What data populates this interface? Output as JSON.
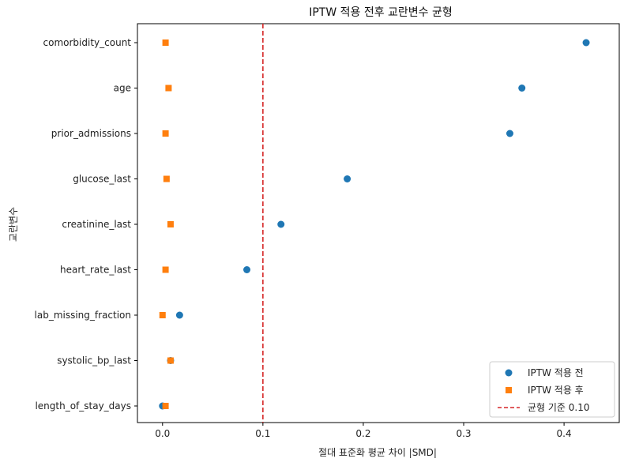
{
  "chart_data": {
    "type": "scatter",
    "title": "IPTW 적용 전후 교란변수 균형",
    "xlabel": "절대 표준화 평균 차이 |SMD|",
    "ylabel": "교란변수",
    "xlim": [
      -0.025,
      0.455
    ],
    "xticks": [
      0.0,
      0.1,
      0.2,
      0.3,
      0.4
    ],
    "xtick_labels": [
      "0.0",
      "0.1",
      "0.2",
      "0.3",
      "0.4"
    ],
    "categories": [
      "comorbidity_count",
      "age",
      "prior_admissions",
      "glucose_last",
      "creatinine_last",
      "heart_rate_last",
      "lab_missing_fraction",
      "systolic_bp_last",
      "length_of_stay_days"
    ],
    "series": [
      {
        "name": "IPTW 적용 전",
        "marker": "circle",
        "color": "#1f77b4",
        "values": [
          0.422,
          0.358,
          0.346,
          0.184,
          0.118,
          0.084,
          0.017,
          0.008,
          0.0
        ]
      },
      {
        "name": "IPTW 적용 후",
        "marker": "square",
        "color": "#ff7f0e",
        "values": [
          0.003,
          0.006,
          0.003,
          0.004,
          0.008,
          0.003,
          0.0,
          0.008,
          0.003
        ]
      }
    ],
    "reference_line": {
      "x": 0.1,
      "label": "균형 기준 0.10",
      "color": "#d62728",
      "style": "dashed"
    },
    "legend_position": "lower-right",
    "grid": false
  }
}
